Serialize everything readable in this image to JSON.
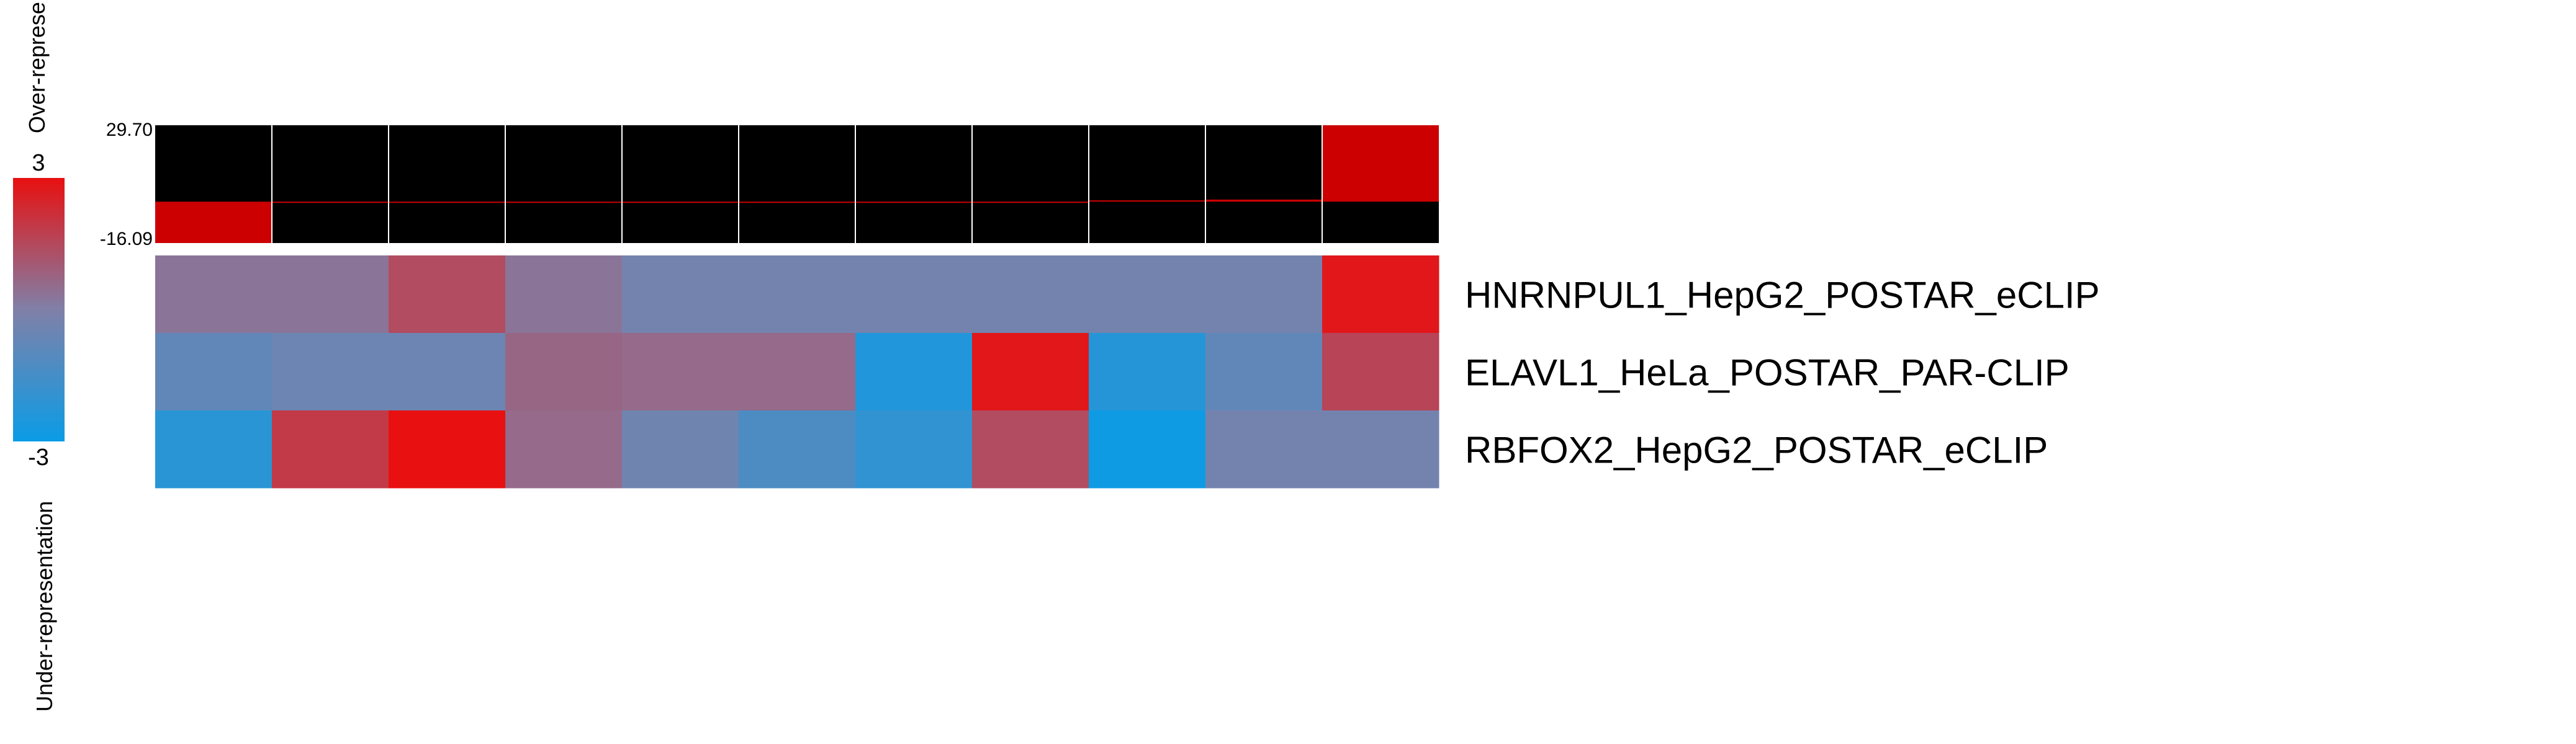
{
  "chart_data": {
    "type": "heatmap",
    "legend": {
      "max_label": "3",
      "min_label": "-3",
      "scale": [
        -3,
        3
      ],
      "top_label": "Over-represe",
      "bottom_label": "Under-representation",
      "colors": {
        "low": "#0a9ce6",
        "mid": "#8080a8",
        "high": "#e81010"
      }
    },
    "bar_track": {
      "max_label": "29.70",
      "min_label": "-16.09",
      "range": [
        -16.09,
        29.7
      ],
      "values": [
        -16.09,
        -0.3,
        -0.3,
        -0.2,
        -0.1,
        -0.1,
        -0.2,
        -0.3,
        0.5,
        0.8,
        29.7
      ],
      "colors": {
        "bar": "#cc0000",
        "background": "#000000",
        "grid": "#ffffff"
      }
    },
    "rows": [
      {
        "label": "HNRNPUL1_HepG2_POSTAR_eCLIP",
        "values": [
          0.3,
          0.3,
          1.4,
          0.3,
          -0.3,
          -0.3,
          -0.3,
          -0.3,
          -0.3,
          -0.3,
          2.8
        ]
      },
      {
        "label": "ELAVL1_HeLa_POSTAR_PAR-CLIP",
        "values": [
          -0.8,
          -0.5,
          -0.5,
          0.7,
          0.6,
          0.6,
          -2.4,
          2.8,
          -2.3,
          -0.8,
          1.6
        ]
      },
      {
        "label": "RBFOX2_HepG2_POSTAR_eCLIP",
        "values": [
          -2.2,
          1.9,
          3.0,
          0.6,
          -0.4,
          -1.3,
          -2.0,
          1.4,
          -2.9,
          -0.3,
          -0.3
        ]
      }
    ]
  }
}
